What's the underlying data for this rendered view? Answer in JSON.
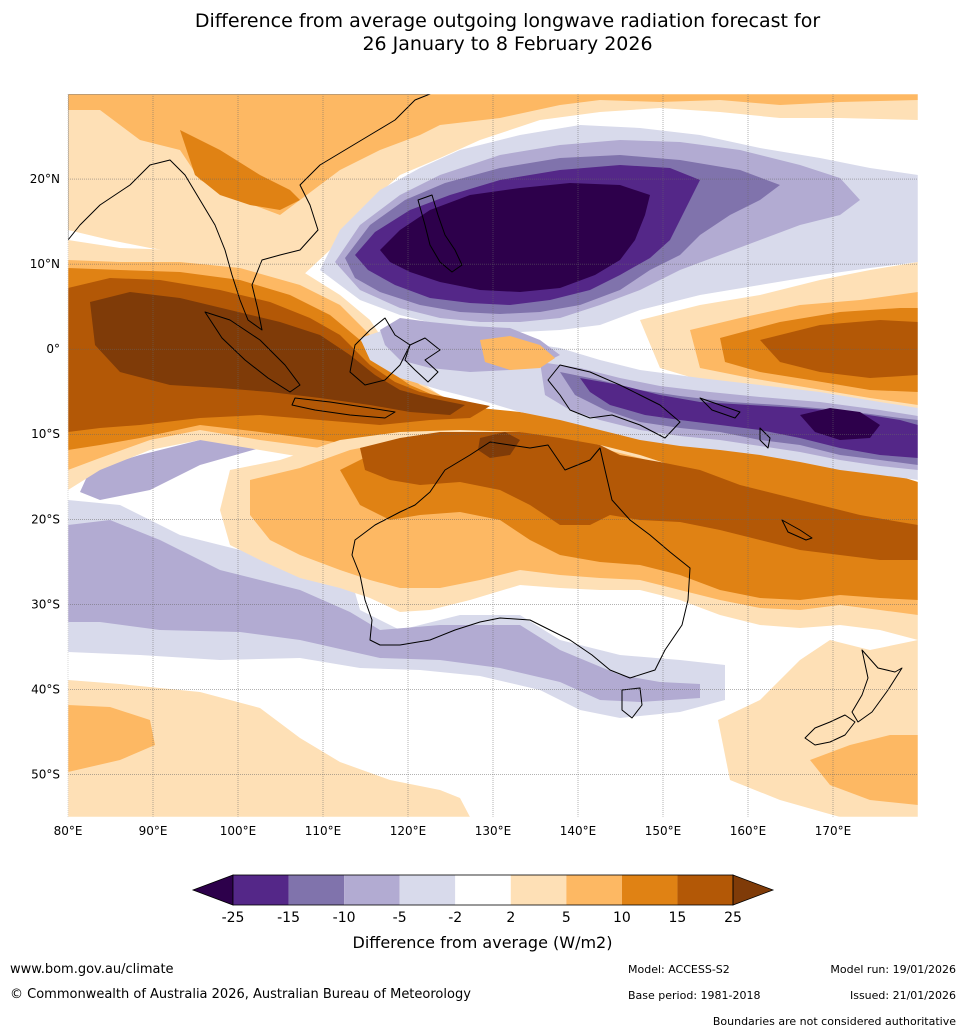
{
  "title": {
    "line1": "Difference from average outgoing longwave radiation forecast for",
    "line2": "26 January to 8 February 2026"
  },
  "map": {
    "lon_range": [
      80,
      180
    ],
    "lat_range": [
      -55,
      30
    ],
    "lon_ticks": [
      "80°E",
      "90°E",
      "100°E",
      "110°E",
      "120°E",
      "130°E",
      "140°E",
      "150°E",
      "160°E",
      "170°E"
    ],
    "lat_ticks": [
      "20°N",
      "10°N",
      "0°",
      "10°S",
      "20°S",
      "30°S",
      "40°S",
      "50°S"
    ],
    "colors": {
      "lt25": "#2d004b",
      "m25_15": "#542788",
      "m15_10": "#8073ac",
      "m10_5": "#b2abd2",
      "m5_2": "#d8daeb",
      "m2_2": "#ffffff",
      "p2_5": "#fee0b6",
      "p5_10": "#fdb863",
      "p10_15": "#e08214",
      "p15_25": "#b35806",
      "gt25": "#7f3b08",
      "land": "#000000",
      "border": "#808080"
    }
  },
  "colorbar": {
    "ticks": [
      "-25",
      "-15",
      "-10",
      "-5",
      "-2",
      "2",
      "5",
      "10",
      "15",
      "25"
    ],
    "label": "Difference from average (W/m2)"
  },
  "footer": {
    "website": "www.bom.gov.au/climate",
    "copyright": "© Commonwealth of Australia 2026, Australian Bureau of Meteorology",
    "model": "Model: ACCESS-S2",
    "model_run": "Model run: 19/01/2026",
    "base_period": "Base period: 1981-2018",
    "issued": "Issued: 21/01/2026",
    "disclaimer": "Boundaries are not considered authoritative"
  }
}
